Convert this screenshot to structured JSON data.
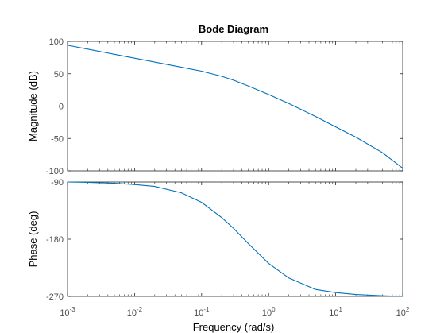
{
  "chart_data": {
    "type": "line",
    "title": "Bode Diagram",
    "xlabel": "Frequency  (rad/s)",
    "x_scale": "log",
    "xlim": [
      0.001,
      100
    ],
    "x_ticks": [
      {
        "value": 0.001,
        "base": "10",
        "exp": "-3"
      },
      {
        "value": 0.01,
        "base": "10",
        "exp": "-2"
      },
      {
        "value": 0.1,
        "base": "10",
        "exp": "-1"
      },
      {
        "value": 1,
        "base": "10",
        "exp": "0"
      },
      {
        "value": 10,
        "base": "10",
        "exp": "1"
      },
      {
        "value": 100,
        "base": "10",
        "exp": "2"
      }
    ],
    "panels": [
      {
        "ylabel": "Magnitude (dB)",
        "ylim": [
          -100,
          100
        ],
        "yticks": [
          -100,
          -50,
          0,
          50,
          100
        ],
        "series": [
          {
            "color": "#0072bd",
            "x": [
              0.001,
              0.002,
              0.005,
              0.01,
              0.02,
              0.05,
              0.1,
              0.2,
              0.3,
              0.5,
              1,
              2,
              5,
              10,
              20,
              50,
              100
            ],
            "y": [
              94,
              88,
              80,
              74,
              68,
              60,
              54,
              46,
              40,
              31,
              18,
              4,
              -16,
              -32,
              -48,
              -72,
              -96
            ]
          }
        ]
      },
      {
        "ylabel": "Phase (deg)",
        "ylim": [
          -270,
          -90
        ],
        "yticks": [
          -270,
          -180,
          -90
        ],
        "series": [
          {
            "color": "#0072bd",
            "x": [
              0.001,
              0.002,
              0.005,
              0.01,
              0.02,
              0.05,
              0.1,
              0.2,
              0.3,
              0.5,
              1,
              2,
              5,
              10,
              20,
              50,
              100
            ],
            "y": [
              -90,
              -90.5,
              -92,
              -94,
              -97,
              -107,
              -122,
              -146,
              -163,
              -187,
              -218,
              -241,
              -259,
              -264,
              -267,
              -269,
              -270
            ]
          }
        ]
      }
    ]
  }
}
